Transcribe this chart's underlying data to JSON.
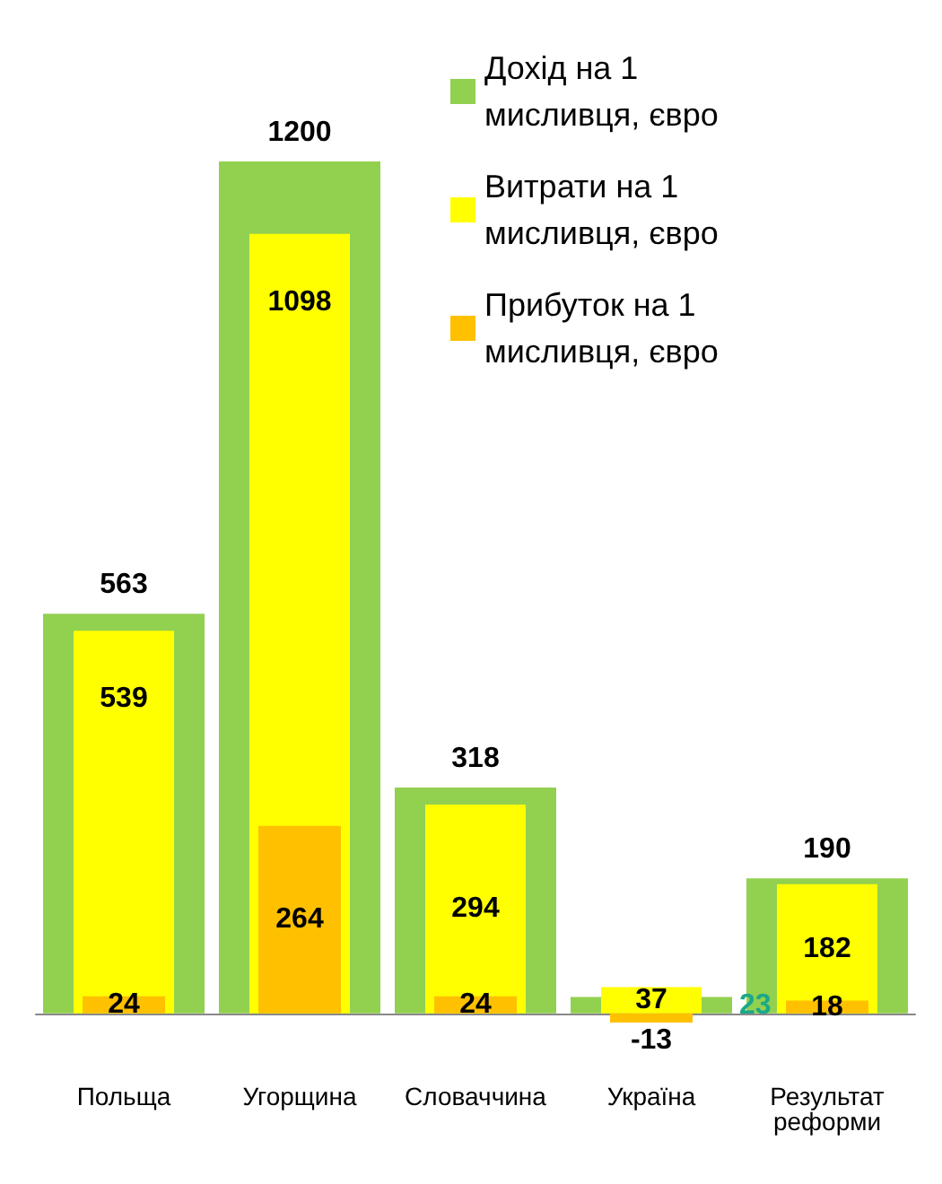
{
  "chart_data": {
    "type": "bar",
    "categories": [
      "Польща",
      "Угорщина",
      "Словаччина",
      "Україна",
      "Результат\nреформи"
    ],
    "series": [
      {
        "name": "Дохід на 1 мисливця, євро",
        "color": "#92d050",
        "values": [
          563,
          1200,
          318,
          23,
          190
        ]
      },
      {
        "name": "Витрати на 1 мисливця, євро",
        "color": "#ffff00",
        "values": [
          539,
          1098,
          294,
          37,
          182
        ]
      },
      {
        "name": "Прибуток на 1 мисливця, євро",
        "color": "#ffc000",
        "values": [
          24,
          264,
          24,
          -13,
          18
        ]
      }
    ],
    "data_labels": true,
    "legend": "top right"
  }
}
